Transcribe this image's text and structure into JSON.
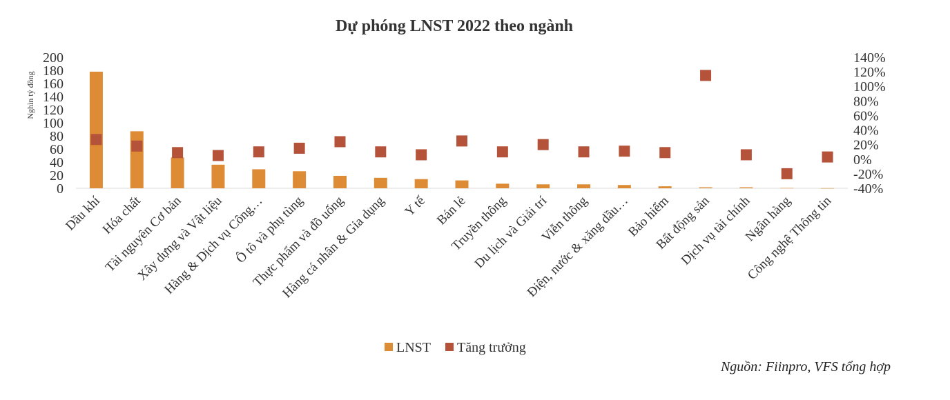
{
  "colors": {
    "bar": "#DE8B36",
    "marker": "#B5533A",
    "text": "#333333",
    "axis": "#d9d9d9"
  },
  "source_note": "Nguồn: Fiinpro, VFS tổng hợp",
  "chart_data": {
    "type": "bar",
    "title": "Dự phóng LNST 2022 theo ngành",
    "ylabel": "Nghìn tỷ đồng",
    "ylim": [
      0,
      200
    ],
    "y_ticks": [
      0,
      20,
      40,
      60,
      80,
      100,
      120,
      140,
      160,
      180,
      200
    ],
    "y2lim": [
      -40,
      140
    ],
    "y2_ticks": [
      "-40%",
      "-20%",
      "0%",
      "20%",
      "40%",
      "60%",
      "80%",
      "100%",
      "120%",
      "140%"
    ],
    "y2_tick_values": [
      -40,
      -20,
      0,
      20,
      40,
      60,
      80,
      100,
      120,
      140
    ],
    "legend_position": "bottom",
    "categories": [
      "Dầu khí",
      "Hóa chất",
      "Tài nguyên Cơ bản",
      "Xây dựng và Vật liệu",
      "Hàng & Dịch vụ Công…",
      "Ô tô và phụ tùng",
      "Thực phẩm và đồ uống",
      "Hàng cá nhân & Gia dụng",
      "Y tế",
      "Bán lẻ",
      "Truyền thông",
      "Du lịch và Giải trí",
      "Viễn thông",
      "Điện, nước & xăng dầu…",
      "Bảo hiểm",
      "Bất động sản",
      "Dịch vụ tài chính",
      "Ngân hàng",
      "Công nghệ Thông tin"
    ],
    "series": [
      {
        "name": "LNST",
        "type": "bar",
        "axis": "left",
        "values": [
          178,
          87,
          47,
          36,
          29,
          26,
          19,
          16,
          14,
          12,
          7,
          6,
          6,
          5,
          3,
          1.5,
          1.5,
          0.5,
          0.2
        ]
      },
      {
        "name": "Tăng trưởng",
        "type": "scatter",
        "axis": "right",
        "values": [
          27,
          18,
          9,
          5,
          10,
          15,
          24,
          10,
          6,
          25,
          10,
          20,
          10,
          11,
          9,
          115,
          6,
          -20,
          3
        ]
      }
    ]
  }
}
